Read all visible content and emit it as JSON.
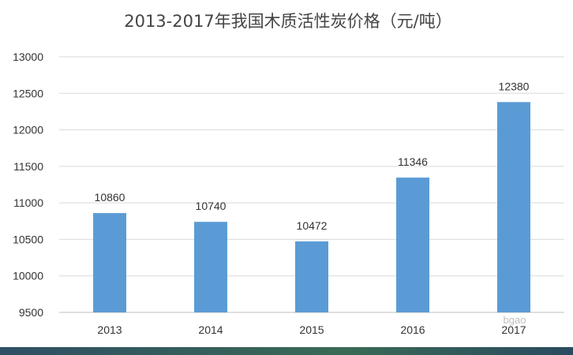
{
  "chart_data": {
    "type": "bar",
    "title": "2013-2017年我国木质活性炭价格（元/吨）",
    "xlabel": "",
    "ylabel": "",
    "categories": [
      "2013",
      "2014",
      "2015",
      "2016",
      "2017"
    ],
    "values": [
      10860,
      10740,
      10472,
      11346,
      12380
    ],
    "data_labels": [
      "10860",
      "10740",
      "10472",
      "11346",
      "12380"
    ],
    "ylim": [
      9500,
      13000
    ],
    "yticks": [
      "9500",
      "10000",
      "10500",
      "11000",
      "11500",
      "12000",
      "12500",
      "13000"
    ],
    "grid": true,
    "legend": "none",
    "bar_color": "#5b9bd5",
    "watermark": "bgao"
  },
  "colors": {
    "background": "#ffffff",
    "bar": "#5b9bd5",
    "grid": "#d9d9d9",
    "text": "#333333",
    "bottom_strip": "#2f4f64"
  }
}
